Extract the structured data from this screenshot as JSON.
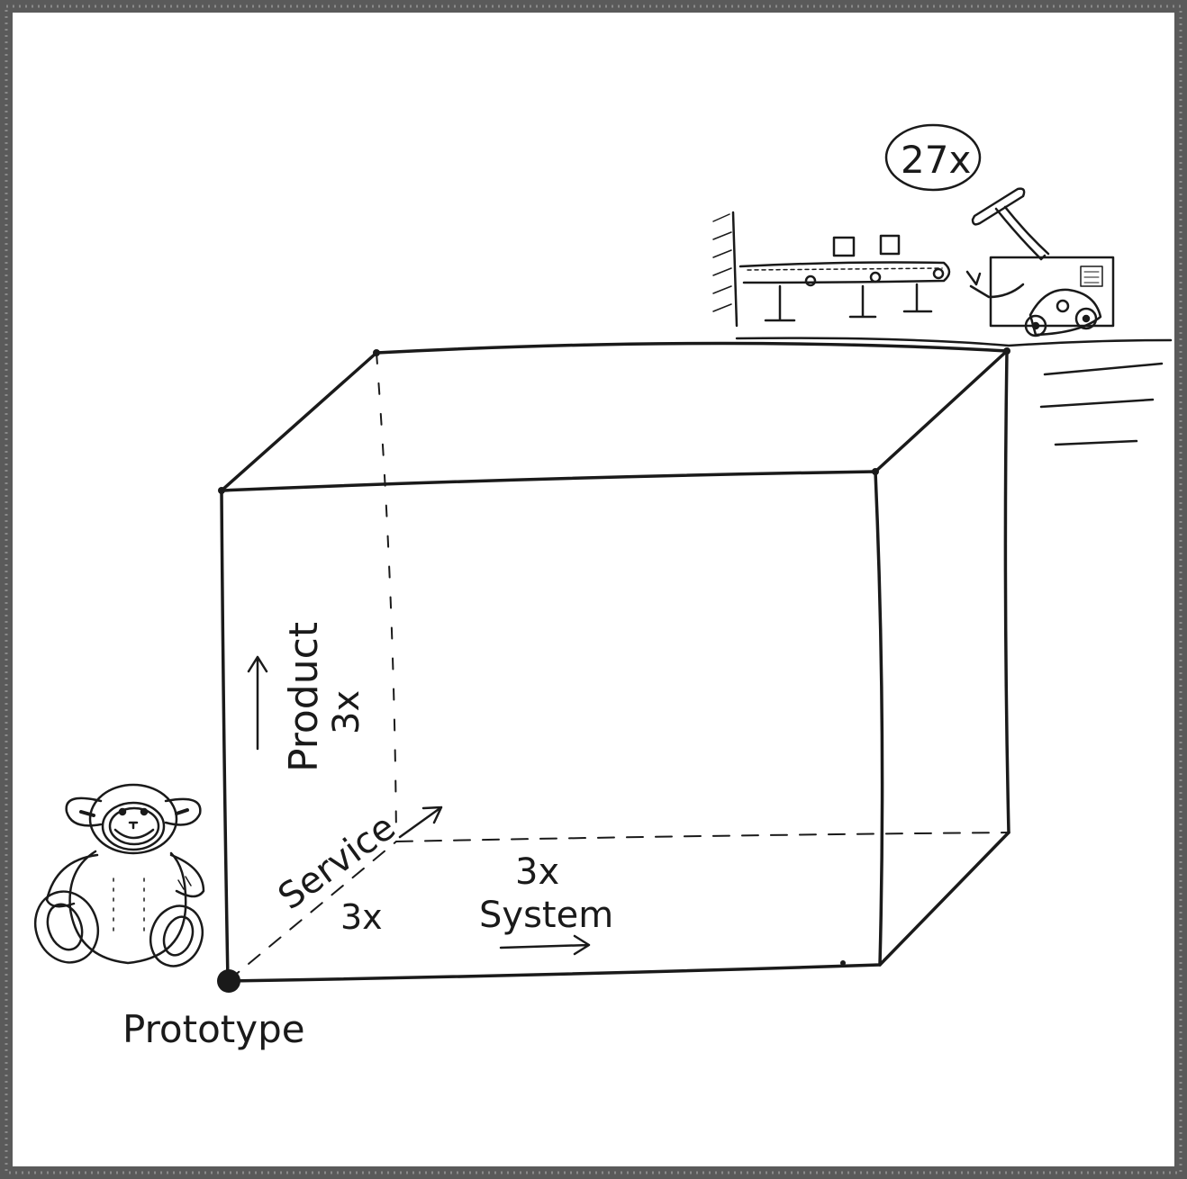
{
  "labels": {
    "prototype": "Prototype",
    "product": "Product",
    "product_multiplier": "3x",
    "service": "Service",
    "service_multiplier": "3x",
    "system": "System",
    "system_multiplier": "3x",
    "total_multiplier": "27x"
  },
  "colors": {
    "ink": "#1a1a1a",
    "paper": "#ffffff",
    "frame": "#5a5a5a"
  },
  "icons": [
    "teddy-bear-icon",
    "factory-assembly-line-icon",
    "robot-arm-icon",
    "forklift-icon"
  ]
}
